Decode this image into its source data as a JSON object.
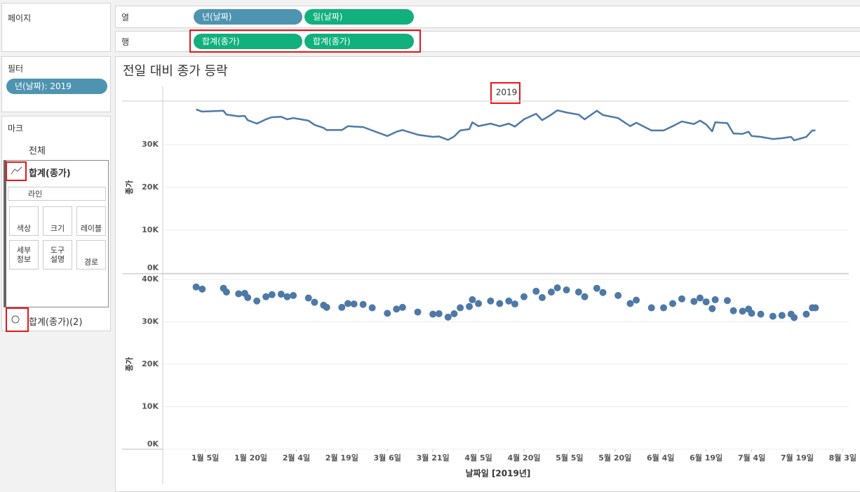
{
  "ui": {
    "pages": "페이지",
    "columns": {
      "label": "열",
      "pills": [
        "년(날짜)",
        "일(날짜)"
      ]
    },
    "rows": {
      "label": "행",
      "pills": [
        "합계(종가)",
        "합계(종가)"
      ]
    },
    "filters": {
      "title": "필터",
      "pill": "년(날짜): 2019"
    },
    "marks": {
      "title": "마크",
      "all": "전체",
      "first": "합계(종가)",
      "mark_type": "라인",
      "buttons": [
        [
          "색상"
        ],
        [
          "크기"
        ],
        [
          "레이블"
        ],
        [
          "세부",
          "정보"
        ],
        [
          "도구",
          "설명"
        ],
        [
          "경로"
        ]
      ],
      "second": "합계(종가)(2)"
    }
  },
  "chart_data": [
    {
      "type": "line",
      "title": "전일 대비 종가 등락",
      "header": "2019",
      "y_label": "종가",
      "color": "#4e79a7",
      "x": [
        2,
        4,
        11,
        12,
        16,
        18,
        19,
        22,
        25,
        27,
        30,
        32,
        34,
        39,
        41,
        44,
        45,
        50,
        52,
        54,
        57,
        60,
        65,
        68,
        70,
        75,
        80,
        82,
        85,
        87,
        89,
        92,
        93,
        95,
        99,
        102,
        105,
        107,
        110,
        114,
        116,
        119,
        121,
        124,
        128,
        130,
        134,
        136,
        141,
        145,
        147,
        152,
        156,
        159,
        162,
        166,
        168,
        170,
        172,
        173,
        177,
        179,
        182,
        184,
        185,
        188,
        192,
        195,
        198,
        199,
        203,
        205,
        206
      ],
      "values": [
        38200,
        37700,
        37900,
        37000,
        36600,
        36700,
        35700,
        34900,
        35900,
        36400,
        36500,
        35900,
        36200,
        35600,
        34600,
        33900,
        33400,
        33400,
        34300,
        34200,
        34100,
        33300,
        32000,
        33000,
        33400,
        32300,
        31800,
        31900,
        31100,
        31900,
        33300,
        33600,
        35200,
        34300,
        34900,
        34300,
        34900,
        34200,
        35900,
        37200,
        35700,
        37000,
        38000,
        37500,
        37000,
        35900,
        37900,
        36900,
        36200,
        34300,
        35100,
        33300,
        33300,
        34300,
        35400,
        34800,
        35600,
        34700,
        33100,
        35200,
        35000,
        32600,
        32500,
        33000,
        32000,
        31800,
        31300,
        31500,
        31800,
        31000,
        31800,
        33300,
        33300
      ],
      "xlim": [
        -9,
        217
      ],
      "ylim": [
        0,
        40000
      ],
      "yticks": [
        {
          "value": 0,
          "label": "0K"
        },
        {
          "value": 10000,
          "label": "10K"
        },
        {
          "value": 20000,
          "label": "20K"
        },
        {
          "value": 30000,
          "label": "30K"
        }
      ],
      "grid": true
    },
    {
      "type": "scatter",
      "y_label": "종가",
      "x_label": "날짜일 [2019년]",
      "color": "#4e79a7",
      "x": [
        2,
        4,
        11,
        12,
        16,
        18,
        19,
        22,
        25,
        27,
        30,
        32,
        34,
        39,
        41,
        44,
        45,
        50,
        52,
        54,
        57,
        60,
        65,
        68,
        70,
        75,
        80,
        82,
        85,
        87,
        89,
        92,
        93,
        95,
        99,
        102,
        105,
        107,
        110,
        114,
        116,
        119,
        121,
        124,
        128,
        130,
        134,
        136,
        141,
        145,
        147,
        152,
        156,
        159,
        162,
        166,
        168,
        170,
        172,
        173,
        177,
        179,
        182,
        184,
        185,
        188,
        192,
        195,
        198,
        199,
        203,
        205,
        206
      ],
      "values": [
        38200,
        37700,
        37900,
        37000,
        36600,
        36700,
        35700,
        34900,
        35900,
        36400,
        36500,
        35900,
        36200,
        35600,
        34600,
        33900,
        33400,
        33400,
        34300,
        34200,
        34100,
        33300,
        32000,
        33000,
        33400,
        32300,
        31800,
        31900,
        31100,
        31900,
        33300,
        33600,
        35200,
        34300,
        34900,
        34300,
        34900,
        34200,
        35900,
        37200,
        35700,
        37000,
        38000,
        37500,
        37000,
        35900,
        37900,
        36900,
        36200,
        34300,
        35100,
        33300,
        33300,
        34300,
        35400,
        34800,
        35600,
        34700,
        33100,
        35200,
        35000,
        32600,
        32500,
        33000,
        32000,
        31800,
        31300,
        31500,
        31800,
        31000,
        31800,
        33300,
        33300
      ],
      "xlim": [
        -9,
        217
      ],
      "ylim": [
        0,
        40000
      ],
      "yticks": [
        {
          "value": 0,
          "label": "0K"
        },
        {
          "value": 10000,
          "label": "10K"
        },
        {
          "value": 20000,
          "label": "20K"
        },
        {
          "value": 30000,
          "label": "30K"
        },
        {
          "value": 40000,
          "label": "40K"
        }
      ],
      "xticks": [
        {
          "value": 5,
          "label": "1월 5일"
        },
        {
          "value": 20,
          "label": "1월 20일"
        },
        {
          "value": 35,
          "label": "2월 4일"
        },
        {
          "value": 50,
          "label": "2월 19일"
        },
        {
          "value": 65,
          "label": "3월 6일"
        },
        {
          "value": 80,
          "label": "3월 21일"
        },
        {
          "value": 95,
          "label": "4월 5일"
        },
        {
          "value": 110,
          "label": "4월 20일"
        },
        {
          "value": 125,
          "label": "5월 5일"
        },
        {
          "value": 140,
          "label": "5월 20일"
        },
        {
          "value": 155,
          "label": "6월 4일"
        },
        {
          "value": 170,
          "label": "6월 19일"
        },
        {
          "value": 185,
          "label": "7월 4일"
        },
        {
          "value": 200,
          "label": "7월 19일"
        },
        {
          "value": 215,
          "label": "8월 3일"
        }
      ],
      "grid": true
    }
  ]
}
